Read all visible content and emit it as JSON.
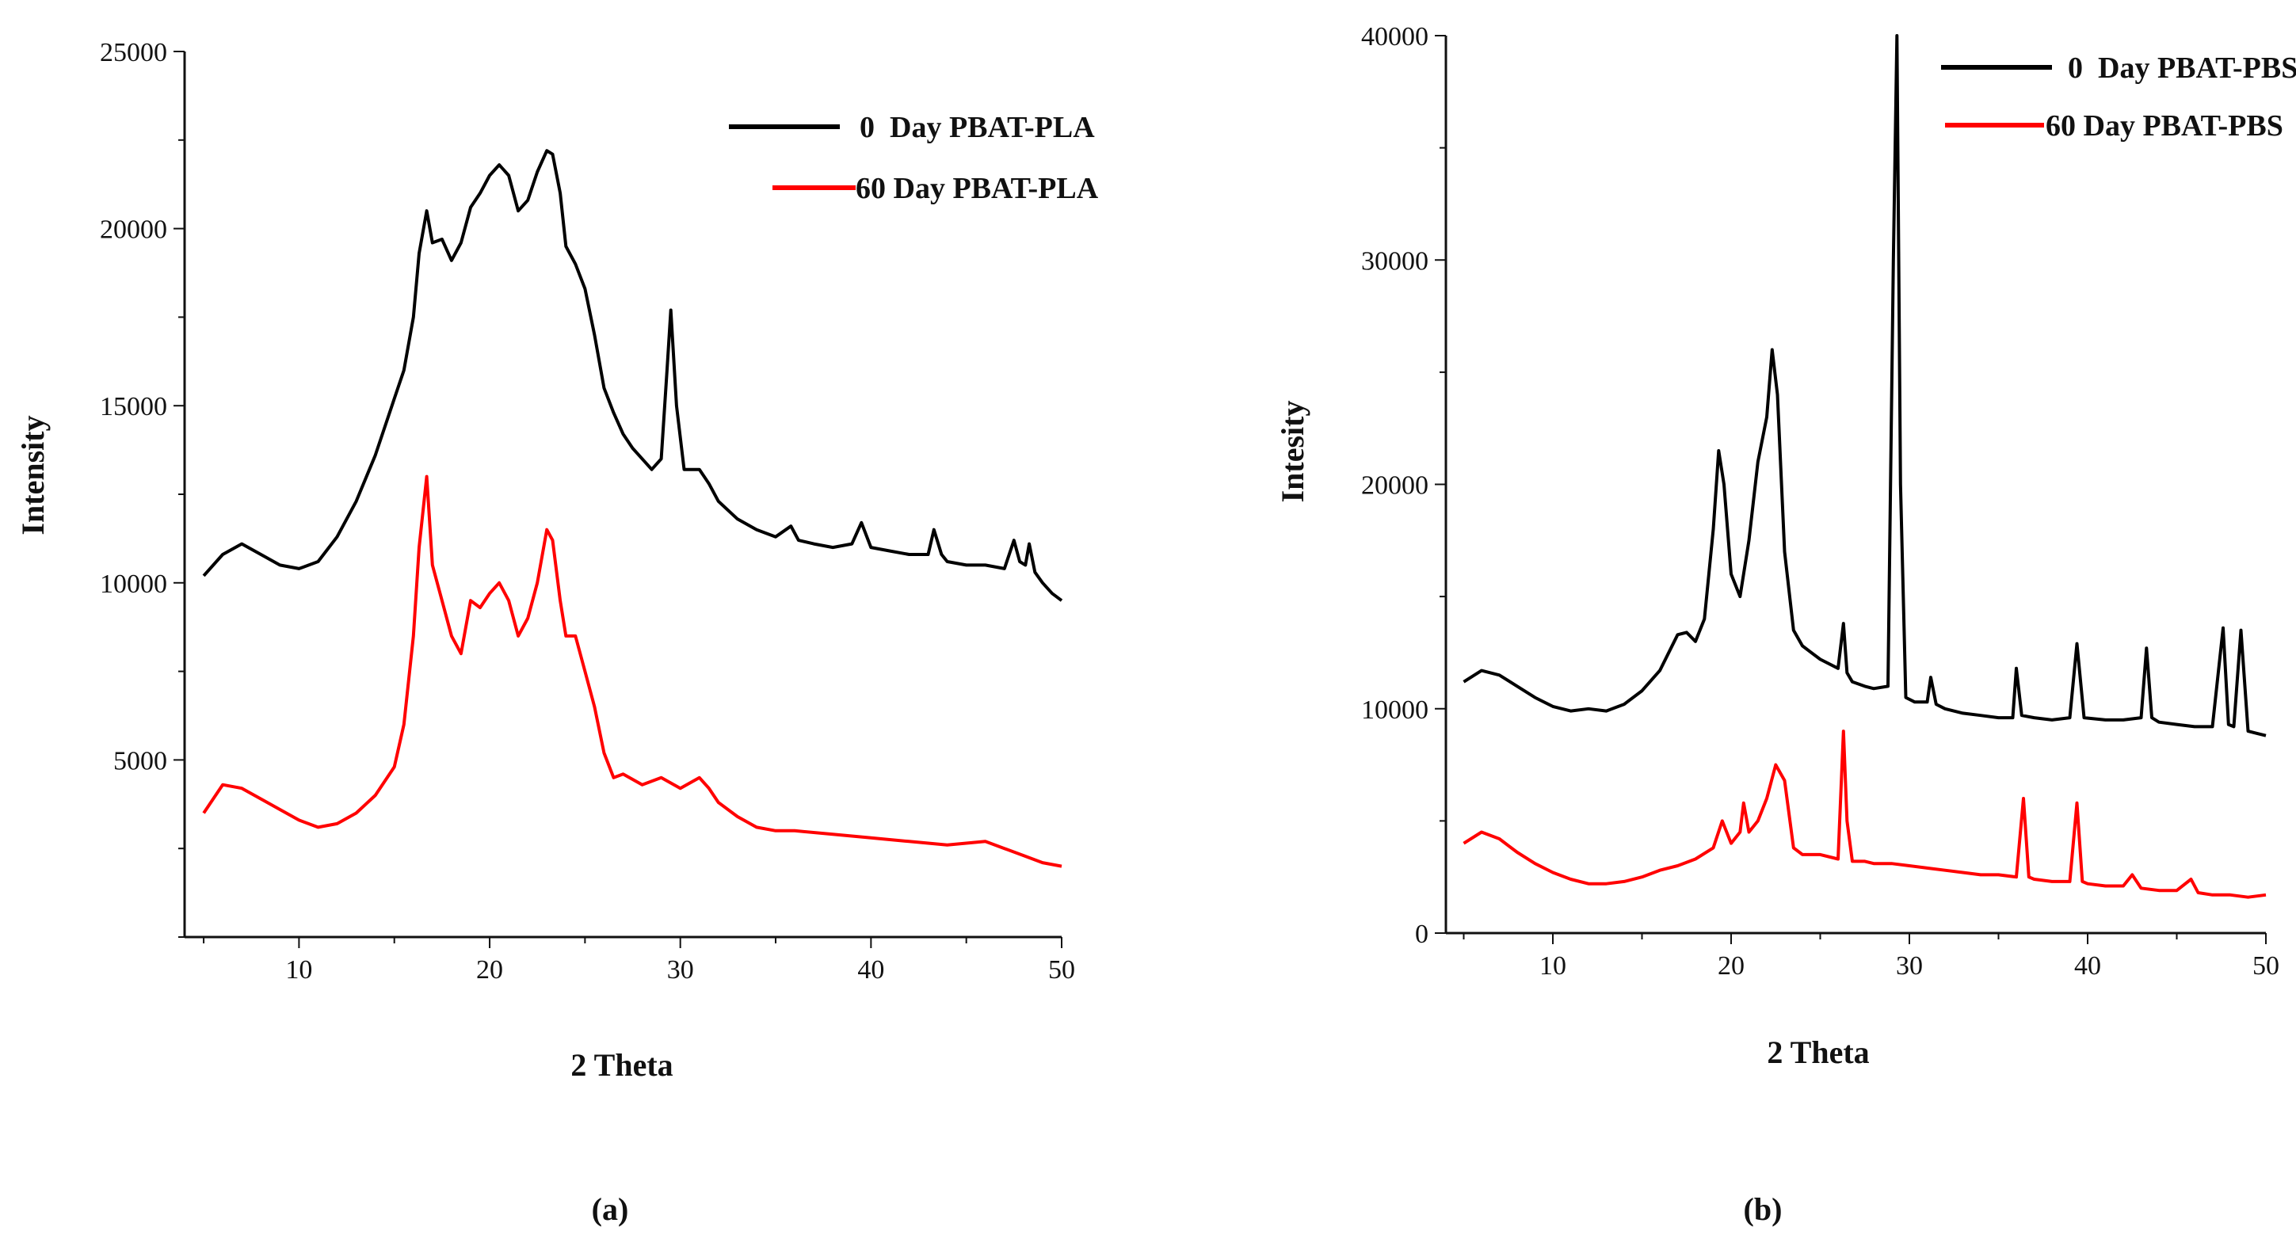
{
  "chart_data": [
    {
      "type": "line",
      "panel_label": "(a)",
      "xlabel": "2 Theta",
      "ylabel": "Intensity",
      "xlim": [
        4,
        50
      ],
      "ylim": [
        0,
        25000
      ],
      "xticks": [
        10,
        20,
        30,
        40,
        50
      ],
      "yticks": [
        5000,
        10000,
        15000,
        20000,
        25000
      ],
      "legend_position": "top-right",
      "series": [
        {
          "name": "0  Day PBAT-PLA",
          "color": "#000000",
          "x": [
            5,
            6,
            7,
            8,
            9,
            10,
            11,
            12,
            13,
            14,
            15,
            15.5,
            16,
            16.3,
            16.7,
            17,
            17.5,
            18,
            18.5,
            19,
            19.5,
            20,
            20.5,
            21,
            21.5,
            22,
            22.5,
            23,
            23.3,
            23.7,
            24,
            24.5,
            25,
            25.5,
            26,
            26.5,
            27,
            27.5,
            28,
            28.5,
            29,
            29.3,
            29.5,
            29.8,
            30.2,
            31,
            31.5,
            32,
            33,
            34,
            35,
            35.8,
            36.2,
            37,
            38,
            39,
            39.5,
            40,
            41,
            42,
            43,
            43.3,
            43.7,
            44,
            45,
            46,
            47,
            47.5,
            47.8,
            48.1,
            48.3,
            48.6,
            49,
            49.5,
            50
          ],
          "y": [
            10200,
            10800,
            11100,
            10800,
            10500,
            10400,
            10600,
            11300,
            12300,
            13600,
            15200,
            16000,
            17500,
            19300,
            20500,
            19600,
            19700,
            19100,
            19600,
            20600,
            21000,
            21500,
            21800,
            21500,
            20500,
            20800,
            21600,
            22200,
            22100,
            21000,
            19500,
            19000,
            18300,
            17000,
            15500,
            14800,
            14200,
            13800,
            13500,
            13200,
            13500,
            16000,
            17700,
            15000,
            13200,
            13200,
            12800,
            12300,
            11800,
            11500,
            11300,
            11600,
            11200,
            11100,
            11000,
            11100,
            11700,
            11000,
            10900,
            10800,
            10800,
            11500,
            10800,
            10600,
            10500,
            10500,
            10400,
            11200,
            10600,
            10500,
            11100,
            10300,
            10000,
            9700,
            9500
          ]
        },
        {
          "name": "60 Day PBAT-PLA",
          "color": "#ff0000",
          "x": [
            5,
            6,
            7,
            8,
            9,
            10,
            11,
            12,
            13,
            14,
            15,
            15.5,
            16,
            16.3,
            16.7,
            17,
            17.5,
            18,
            18.5,
            19,
            19.5,
            20,
            20.5,
            21,
            21.5,
            22,
            22.5,
            23,
            23.3,
            23.7,
            24,
            24.5,
            25,
            25.5,
            26,
            26.5,
            27,
            28,
            29,
            30,
            31,
            31.5,
            32,
            33,
            34,
            35,
            36,
            38,
            40,
            42,
            44,
            46,
            47,
            48,
            49,
            50
          ],
          "y": [
            3500,
            4300,
            4200,
            3900,
            3600,
            3300,
            3100,
            3200,
            3500,
            4000,
            4800,
            6000,
            8500,
            11000,
            13000,
            10500,
            9500,
            8500,
            8000,
            9500,
            9300,
            9700,
            10000,
            9500,
            8500,
            9000,
            10000,
            11500,
            11200,
            9500,
            8500,
            8500,
            7500,
            6500,
            5200,
            4500,
            4600,
            4300,
            4500,
            4200,
            4500,
            4200,
            3800,
            3400,
            3100,
            3000,
            3000,
            2900,
            2800,
            2700,
            2600,
            2700,
            2500,
            2300,
            2100,
            2000
          ]
        }
      ]
    },
    {
      "type": "line",
      "panel_label": "(b)",
      "xlabel": "2 Theta",
      "ylabel": "Intesity",
      "xlim": [
        4,
        50
      ],
      "ylim": [
        0,
        40000
      ],
      "xticks": [
        10,
        20,
        30,
        40,
        50
      ],
      "yticks": [
        0,
        10000,
        20000,
        30000,
        40000
      ],
      "legend_position": "top-right",
      "series": [
        {
          "name": "0  Day PBAT-PBS",
          "color": "#000000",
          "x": [
            5,
            6,
            7,
            8,
            9,
            10,
            11,
            12,
            13,
            14,
            15,
            16,
            17,
            17.5,
            18,
            18.5,
            19,
            19.3,
            19.6,
            20,
            20.5,
            21,
            21.5,
            22,
            22.3,
            22.6,
            23,
            23.5,
            24,
            25,
            26,
            26.3,
            26.5,
            26.8,
            27.5,
            28,
            28.8,
            29.1,
            29.3,
            29.5,
            29.8,
            30.3,
            31,
            31.2,
            31.5,
            32,
            33,
            34,
            35,
            35.8,
            36,
            36.3,
            37,
            38,
            39,
            39.4,
            39.8,
            41,
            42,
            43,
            43.3,
            43.6,
            44,
            45,
            46,
            47,
            47.6,
            47.9,
            48.2,
            48.6,
            49,
            49.5,
            50
          ],
          "y": [
            11200,
            11700,
            11500,
            11000,
            10500,
            10100,
            9900,
            10000,
            9900,
            10200,
            10800,
            11700,
            13300,
            13400,
            13000,
            14000,
            18000,
            21500,
            20000,
            16000,
            15000,
            17500,
            21000,
            23000,
            26000,
            24000,
            17000,
            13500,
            12800,
            12200,
            11800,
            13800,
            11600,
            11200,
            11000,
            10900,
            11000,
            30000,
            40000,
            20000,
            10500,
            10300,
            10300,
            11400,
            10200,
            10000,
            9800,
            9700,
            9600,
            9600,
            11800,
            9700,
            9600,
            9500,
            9600,
            12900,
            9600,
            9500,
            9500,
            9600,
            12700,
            9600,
            9400,
            9300,
            9200,
            9200,
            13600,
            9300,
            9200,
            13500,
            9000,
            8900,
            8800
          ]
        },
        {
          "name": "60 Day PBAT-PBS",
          "color": "#ff0000",
          "x": [
            5,
            6,
            7,
            8,
            9,
            10,
            11,
            12,
            13,
            14,
            15,
            16,
            17,
            18,
            19,
            19.5,
            20,
            20.5,
            20.7,
            21,
            21.5,
            22,
            22.5,
            23,
            23.5,
            24,
            25,
            26,
            26.3,
            26.5,
            26.8,
            27.5,
            28,
            29,
            30,
            31,
            32,
            33,
            34,
            35,
            36,
            36.4,
            36.7,
            37,
            38,
            39,
            39.4,
            39.7,
            40,
            41,
            42,
            42.5,
            43,
            44,
            45,
            45.8,
            46.2,
            47,
            48,
            49,
            50
          ],
          "y": [
            4000,
            4500,
            4200,
            3600,
            3100,
            2700,
            2400,
            2200,
            2200,
            2300,
            2500,
            2800,
            3000,
            3300,
            3800,
            5000,
            4000,
            4500,
            5800,
            4500,
            5000,
            6000,
            7500,
            6800,
            3800,
            3500,
            3500,
            3300,
            9000,
            5000,
            3200,
            3200,
            3100,
            3100,
            3000,
            2900,
            2800,
            2700,
            2600,
            2600,
            2500,
            6000,
            2500,
            2400,
            2300,
            2300,
            5800,
            2300,
            2200,
            2100,
            2100,
            2600,
            2000,
            1900,
            1900,
            2400,
            1800,
            1700,
            1700,
            1600,
            1700
          ]
        }
      ]
    }
  ]
}
